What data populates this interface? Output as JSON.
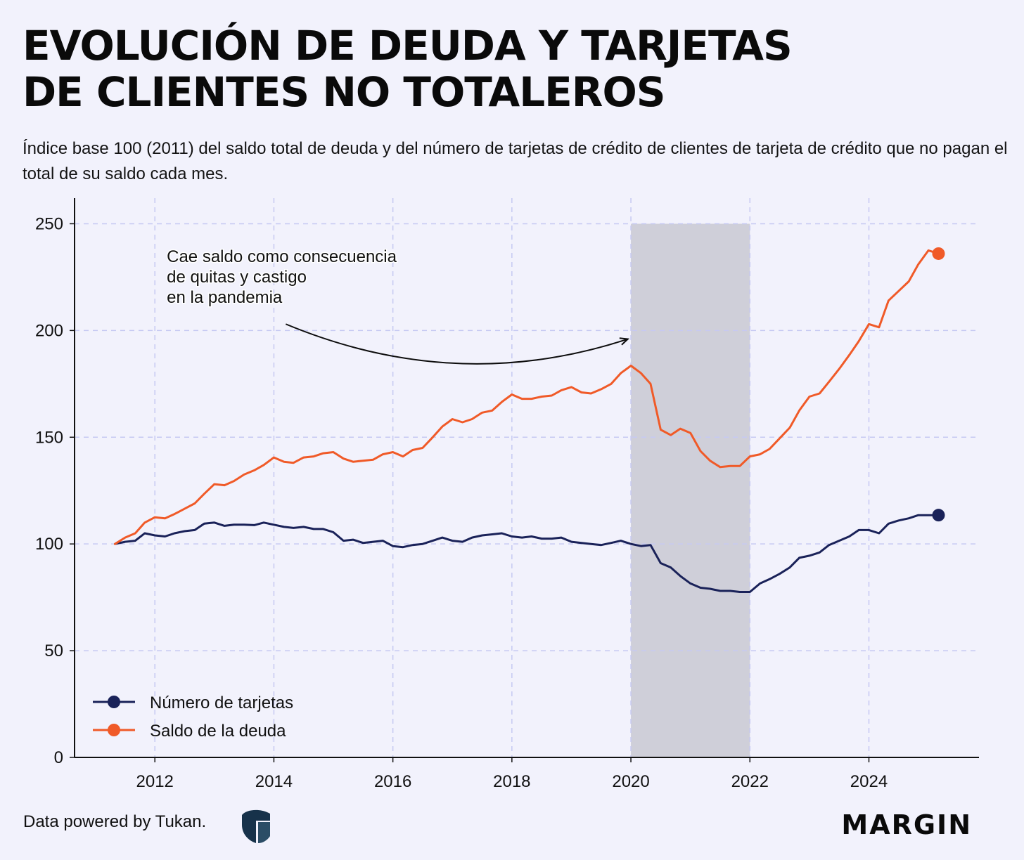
{
  "header": {
    "title_line1": "EVOLUCIÓN DE DEUDA Y TARJETAS",
    "title_line2": "DE CLIENTES NO TOTALEROS",
    "subtitle": "Índice base 100 (2011) del saldo total de deuda y del número de tarjetas de crédito de clientes de tarjeta de crédito que no pagan el total de su saldo cada mes."
  },
  "footer": {
    "credit": "Data powered by Tukan.",
    "brand": "MARGIN"
  },
  "colors": {
    "background": "#f2f2fc",
    "tarjetas": "#1a2259",
    "deuda": "#f05a28",
    "grid": "#c6c9f2",
    "shade": "#cfcfd9"
  },
  "chart_data": {
    "type": "line",
    "title": "EVOLUCIÓN DE DEUDA Y TARJETAS DE CLIENTES NO TOTALEROS",
    "xlabel": "",
    "ylabel": "",
    "xlim": [
      2010.65,
      2025.85
    ],
    "ylim": [
      0,
      262
    ],
    "xticks": [
      2012,
      2014,
      2016,
      2018,
      2020,
      2022,
      2024
    ],
    "yticks": [
      0,
      50,
      100,
      150,
      200,
      250
    ],
    "grid": true,
    "legend_position": "bottom-left",
    "shaded_region": {
      "x0": 2020.0,
      "x1": 2022.0,
      "y1": 250
    },
    "annotation": {
      "lines": [
        "Cae saldo como consecuencia",
        "de quitas y castigo",
        "en la pandemia"
      ],
      "text_at": [
        2012.2,
        232
      ],
      "arrow_from": [
        2014.2,
        203
      ],
      "arrow_to": [
        2019.95,
        196
      ]
    },
    "series": [
      {
        "name": "Número de tarjetas",
        "color": "#1a2259",
        "points": [
          [
            2011.33,
            100.0
          ],
          [
            2011.5,
            101.0
          ],
          [
            2011.67,
            101.5
          ],
          [
            2011.83,
            105.0
          ],
          [
            2012.0,
            104.0
          ],
          [
            2012.17,
            103.5
          ],
          [
            2012.33,
            105.0
          ],
          [
            2012.5,
            106.0
          ],
          [
            2012.67,
            106.5
          ],
          [
            2012.83,
            109.5
          ],
          [
            2013.0,
            110.0
          ],
          [
            2013.17,
            108.5
          ],
          [
            2013.33,
            109.0
          ],
          [
            2013.5,
            109.0
          ],
          [
            2013.67,
            108.8
          ],
          [
            2013.83,
            110.0
          ],
          [
            2014.0,
            109.0
          ],
          [
            2014.17,
            108.0
          ],
          [
            2014.33,
            107.5
          ],
          [
            2014.5,
            108.0
          ],
          [
            2014.67,
            107.0
          ],
          [
            2014.83,
            107.0
          ],
          [
            2015.0,
            105.5
          ],
          [
            2015.17,
            101.5
          ],
          [
            2015.33,
            102.0
          ],
          [
            2015.5,
            100.5
          ],
          [
            2015.67,
            101.0
          ],
          [
            2015.83,
            101.5
          ],
          [
            2016.0,
            99.0
          ],
          [
            2016.17,
            98.5
          ],
          [
            2016.33,
            99.5
          ],
          [
            2016.5,
            100.0
          ],
          [
            2016.67,
            101.5
          ],
          [
            2016.83,
            103.0
          ],
          [
            2017.0,
            101.5
          ],
          [
            2017.17,
            101.0
          ],
          [
            2017.33,
            103.0
          ],
          [
            2017.5,
            104.0
          ],
          [
            2017.67,
            104.5
          ],
          [
            2017.83,
            105.0
          ],
          [
            2018.0,
            103.5
          ],
          [
            2018.17,
            103.0
          ],
          [
            2018.33,
            103.5
          ],
          [
            2018.5,
            102.5
          ],
          [
            2018.67,
            102.5
          ],
          [
            2018.83,
            103.0
          ],
          [
            2019.0,
            101.0
          ],
          [
            2019.17,
            100.5
          ],
          [
            2019.33,
            100.0
          ],
          [
            2019.5,
            99.5
          ],
          [
            2019.67,
            100.5
          ],
          [
            2019.83,
            101.5
          ],
          [
            2020.0,
            100.0
          ],
          [
            2020.17,
            99.0
          ],
          [
            2020.33,
            99.5
          ],
          [
            2020.5,
            91.0
          ],
          [
            2020.67,
            89.0
          ],
          [
            2020.83,
            85.0
          ],
          [
            2021.0,
            81.5
          ],
          [
            2021.17,
            79.5
          ],
          [
            2021.33,
            79.0
          ],
          [
            2021.5,
            78.0
          ],
          [
            2021.67,
            78.0
          ],
          [
            2021.83,
            77.5
          ],
          [
            2022.0,
            77.5
          ],
          [
            2022.17,
            81.5
          ],
          [
            2022.33,
            83.5
          ],
          [
            2022.5,
            86.0
          ],
          [
            2022.67,
            89.0
          ],
          [
            2022.83,
            93.5
          ],
          [
            2023.0,
            94.5
          ],
          [
            2023.17,
            96.0
          ],
          [
            2023.33,
            99.5
          ],
          [
            2023.5,
            101.5
          ],
          [
            2023.67,
            103.5
          ],
          [
            2023.83,
            106.5
          ],
          [
            2024.0,
            106.5
          ],
          [
            2024.17,
            105.0
          ],
          [
            2024.33,
            109.5
          ],
          [
            2024.5,
            111.0
          ],
          [
            2024.67,
            112.0
          ],
          [
            2024.83,
            113.5
          ],
          [
            2025.0,
            113.5
          ],
          [
            2025.17,
            113.5
          ]
        ]
      },
      {
        "name": "Saldo de la deuda",
        "color": "#f05a28",
        "points": [
          [
            2011.33,
            100.0
          ],
          [
            2011.5,
            103.0
          ],
          [
            2011.67,
            105.0
          ],
          [
            2011.83,
            110.0
          ],
          [
            2012.0,
            112.5
          ],
          [
            2012.17,
            112.0
          ],
          [
            2012.33,
            114.0
          ],
          [
            2012.5,
            116.5
          ],
          [
            2012.67,
            119.0
          ],
          [
            2012.83,
            123.5
          ],
          [
            2013.0,
            128.0
          ],
          [
            2013.17,
            127.5
          ],
          [
            2013.33,
            129.5
          ],
          [
            2013.5,
            132.5
          ],
          [
            2013.67,
            134.5
          ],
          [
            2013.83,
            137.0
          ],
          [
            2014.0,
            140.5
          ],
          [
            2014.17,
            138.5
          ],
          [
            2014.33,
            138.0
          ],
          [
            2014.5,
            140.5
          ],
          [
            2014.67,
            141.0
          ],
          [
            2014.83,
            142.5
          ],
          [
            2015.0,
            143.0
          ],
          [
            2015.17,
            140.0
          ],
          [
            2015.33,
            138.5
          ],
          [
            2015.5,
            139.0
          ],
          [
            2015.67,
            139.5
          ],
          [
            2015.83,
            142.0
          ],
          [
            2016.0,
            143.0
          ],
          [
            2016.17,
            141.0
          ],
          [
            2016.33,
            144.0
          ],
          [
            2016.5,
            145.0
          ],
          [
            2016.67,
            150.0
          ],
          [
            2016.83,
            155.0
          ],
          [
            2017.0,
            158.5
          ],
          [
            2017.17,
            157.0
          ],
          [
            2017.33,
            158.5
          ],
          [
            2017.5,
            161.5
          ],
          [
            2017.67,
            162.5
          ],
          [
            2017.83,
            166.5
          ],
          [
            2018.0,
            170.0
          ],
          [
            2018.17,
            168.0
          ],
          [
            2018.33,
            168.0
          ],
          [
            2018.5,
            169.0
          ],
          [
            2018.67,
            169.5
          ],
          [
            2018.83,
            172.0
          ],
          [
            2019.0,
            173.5
          ],
          [
            2019.17,
            171.0
          ],
          [
            2019.33,
            170.5
          ],
          [
            2019.5,
            172.5
          ],
          [
            2019.67,
            175.0
          ],
          [
            2019.83,
            180.0
          ],
          [
            2020.0,
            183.5
          ],
          [
            2020.17,
            180.0
          ],
          [
            2020.33,
            175.0
          ],
          [
            2020.5,
            153.5
          ],
          [
            2020.67,
            151.0
          ],
          [
            2020.83,
            154.0
          ],
          [
            2021.0,
            152.0
          ],
          [
            2021.17,
            143.5
          ],
          [
            2021.33,
            139.0
          ],
          [
            2021.5,
            136.0
          ],
          [
            2021.67,
            136.5
          ],
          [
            2021.83,
            136.5
          ],
          [
            2022.0,
            141.0
          ],
          [
            2022.17,
            142.0
          ],
          [
            2022.33,
            144.5
          ],
          [
            2022.5,
            149.5
          ],
          [
            2022.67,
            154.5
          ],
          [
            2022.83,
            162.5
          ],
          [
            2023.0,
            169.0
          ],
          [
            2023.17,
            170.5
          ],
          [
            2023.33,
            176.0
          ],
          [
            2023.5,
            182.0
          ],
          [
            2023.67,
            188.5
          ],
          [
            2023.83,
            195.0
          ],
          [
            2024.0,
            203.0
          ],
          [
            2024.17,
            201.5
          ],
          [
            2024.33,
            214.0
          ],
          [
            2024.5,
            218.5
          ],
          [
            2024.67,
            223.0
          ],
          [
            2024.83,
            231.0
          ],
          [
            2025.0,
            237.5
          ],
          [
            2025.17,
            236.0
          ]
        ]
      }
    ]
  }
}
